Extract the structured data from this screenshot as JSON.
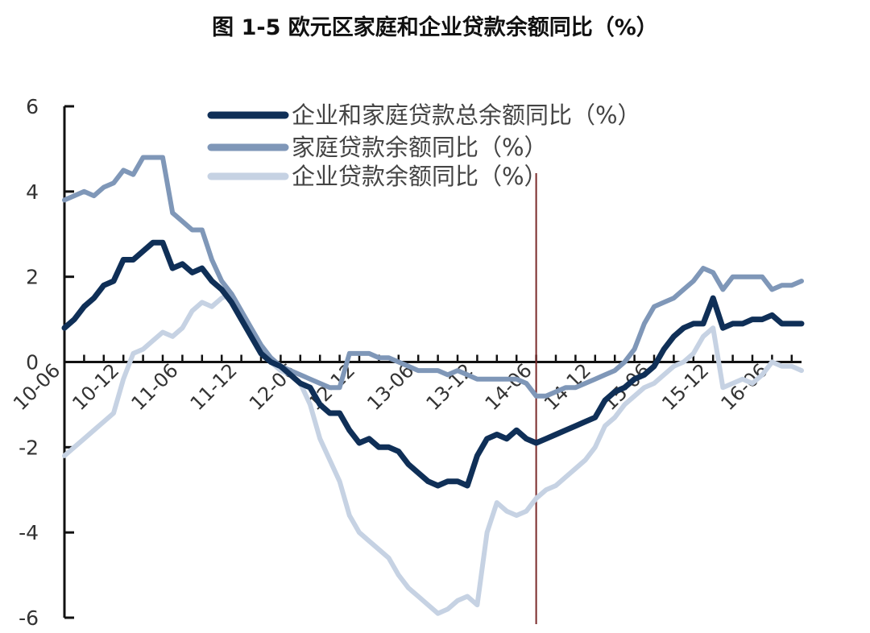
{
  "title": "图 1-5  欧元区家庭和企业贷款余额同比（%）",
  "chart_data": {
    "type": "line",
    "ylim": [
      -6,
      6
    ],
    "y_ticks": [
      6,
      4,
      2,
      0,
      -2,
      -4,
      -6
    ],
    "x_tick_labels": [
      "10-06",
      "10-12",
      "11-06",
      "11-12",
      "12-06",
      "12-12",
      "13-06",
      "13-12",
      "14-06",
      "14-12",
      "15-06",
      "15-12",
      "16-06"
    ],
    "x": [
      "10-06",
      "10-07",
      "10-08",
      "10-09",
      "10-10",
      "10-11",
      "10-12",
      "11-01",
      "11-02",
      "11-03",
      "11-04",
      "11-05",
      "11-06",
      "11-07",
      "11-08",
      "11-09",
      "11-10",
      "11-11",
      "11-12",
      "12-01",
      "12-02",
      "12-03",
      "12-04",
      "12-05",
      "12-06",
      "12-07",
      "12-08",
      "12-09",
      "12-10",
      "12-11",
      "12-12",
      "13-01",
      "13-02",
      "13-03",
      "13-04",
      "13-05",
      "13-06",
      "13-07",
      "13-08",
      "13-09",
      "13-10",
      "13-11",
      "13-12",
      "14-01",
      "14-02",
      "14-03",
      "14-04",
      "14-05",
      "14-06",
      "14-07",
      "14-08",
      "14-09",
      "14-10",
      "14-11",
      "14-12",
      "15-01",
      "15-02",
      "15-03",
      "15-04",
      "15-05",
      "15-06",
      "15-07",
      "15-08",
      "15-09",
      "15-10",
      "15-11",
      "15-12",
      "16-01",
      "16-02",
      "16-03",
      "16-04",
      "16-05",
      "16-06",
      "16-07",
      "16-08",
      "16-09"
    ],
    "series": [
      {
        "name": "企业和家庭贷款总余额同比（%）",
        "color": "#0f2f57",
        "values": [
          0.8,
          1.0,
          1.3,
          1.5,
          1.8,
          1.9,
          2.4,
          2.4,
          2.6,
          2.8,
          2.8,
          2.2,
          2.3,
          2.1,
          2.2,
          1.9,
          1.7,
          1.4,
          1.0,
          0.6,
          0.2,
          0.0,
          -0.1,
          -0.3,
          -0.5,
          -0.6,
          -1.0,
          -1.2,
          -1.2,
          -1.6,
          -1.9,
          -1.8,
          -2.0,
          -2.0,
          -2.1,
          -2.4,
          -2.6,
          -2.8,
          -2.9,
          -2.8,
          -2.8,
          -2.9,
          -2.2,
          -1.8,
          -1.7,
          -1.8,
          -1.6,
          -1.8,
          -1.9,
          -1.8,
          -1.7,
          -1.6,
          -1.5,
          -1.4,
          -1.3,
          -0.9,
          -0.7,
          -0.6,
          -0.4,
          -0.3,
          -0.1,
          0.3,
          0.6,
          0.8,
          0.9,
          0.9,
          1.5,
          0.8,
          0.9,
          0.9,
          1.0,
          1.0,
          1.1,
          0.9,
          0.9,
          0.9
        ]
      },
      {
        "name": "家庭贷款余额同比（%）",
        "color": "#7f97b8",
        "values": [
          3.8,
          3.9,
          4.0,
          3.9,
          4.1,
          4.2,
          4.5,
          4.4,
          4.8,
          4.8,
          4.8,
          3.5,
          3.3,
          3.1,
          3.1,
          2.4,
          1.9,
          1.6,
          1.2,
          0.8,
          0.4,
          0.1,
          -0.1,
          -0.2,
          -0.3,
          -0.4,
          -0.5,
          -0.6,
          -0.6,
          0.2,
          0.2,
          0.2,
          0.1,
          0.1,
          0.0,
          -0.1,
          -0.2,
          -0.2,
          -0.2,
          -0.3,
          -0.2,
          -0.3,
          -0.4,
          -0.4,
          -0.4,
          -0.4,
          -0.4,
          -0.5,
          -0.8,
          -0.8,
          -0.7,
          -0.6,
          -0.6,
          -0.5,
          -0.4,
          -0.3,
          -0.2,
          0.0,
          0.3,
          0.9,
          1.3,
          1.4,
          1.5,
          1.7,
          1.9,
          2.2,
          2.1,
          1.7,
          2.0,
          2.0,
          2.0,
          2.0,
          1.7,
          1.8,
          1.8,
          1.9
        ]
      },
      {
        "name": "企业贷款余额同比（%）",
        "color": "#c6d2e3",
        "values": [
          -2.2,
          -2.0,
          -1.8,
          -1.6,
          -1.4,
          -1.2,
          -0.4,
          0.2,
          0.3,
          0.5,
          0.7,
          0.6,
          0.8,
          1.2,
          1.4,
          1.3,
          1.5,
          1.6,
          1.2,
          0.7,
          0.3,
          0.0,
          -0.2,
          -0.3,
          -0.5,
          -1.0,
          -1.8,
          -2.3,
          -2.8,
          -3.6,
          -4.0,
          -4.2,
          -4.4,
          -4.6,
          -5.0,
          -5.3,
          -5.5,
          -5.7,
          -5.9,
          -5.8,
          -5.6,
          -5.5,
          -5.7,
          -4.0,
          -3.3,
          -3.5,
          -3.6,
          -3.5,
          -3.2,
          -3.0,
          -2.9,
          -2.7,
          -2.5,
          -2.3,
          -2.0,
          -1.5,
          -1.3,
          -1.0,
          -0.8,
          -0.6,
          -0.5,
          -0.3,
          -0.1,
          0.0,
          0.2,
          0.6,
          0.8,
          -0.6,
          -0.5,
          -0.4,
          -0.5,
          -0.3,
          0.0,
          -0.1,
          -0.1,
          -0.2
        ]
      }
    ],
    "marker_x": "14-06",
    "grid": false,
    "legend_position": "top-center"
  }
}
